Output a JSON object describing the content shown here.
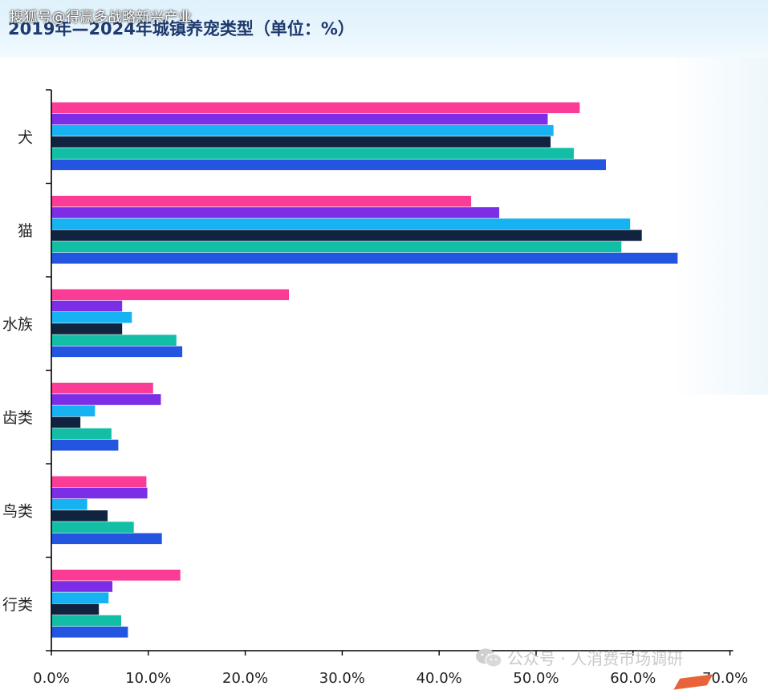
{
  "source_tag": "搜狐号@得赢多战略新兴产业",
  "title": "2019年—2024年城镇养宠类型（单位：%）",
  "watermark": "公众号 · 人消费市场调研",
  "colors": {
    "series": [
      "#fb3c97",
      "#7b2ee6",
      "#16b2f2",
      "#10243f",
      "#12bfa6",
      "#2355e0"
    ],
    "axis": "#000000",
    "title": "#1e3a6e"
  },
  "chart_data": {
    "type": "bar",
    "orientation": "horizontal",
    "categories": [
      "犬",
      "猫",
      "水族",
      "齿类",
      "鸟类",
      "行类"
    ],
    "series": [
      {
        "values": [
          54.5,
          43.3,
          24.5,
          10.5,
          9.8,
          13.3
        ]
      },
      {
        "values": [
          51.2,
          46.2,
          7.3,
          11.3,
          9.9,
          6.3
        ]
      },
      {
        "values": [
          51.8,
          59.7,
          8.3,
          4.5,
          3.7,
          5.9
        ]
      },
      {
        "values": [
          51.5,
          60.9,
          7.3,
          3.0,
          5.8,
          4.9
        ]
      },
      {
        "values": [
          53.9,
          58.8,
          12.9,
          6.2,
          8.5,
          7.2
        ]
      },
      {
        "values": [
          57.2,
          64.6,
          13.5,
          6.9,
          11.4,
          7.9
        ]
      }
    ],
    "xlim": [
      0,
      70
    ],
    "xticks": [
      "0.0%",
      "10.0%",
      "20.0%",
      "30.0%",
      "40.0%",
      "50.0%",
      "60.0%",
      "70.0%"
    ],
    "grid": false,
    "legend": "none"
  }
}
